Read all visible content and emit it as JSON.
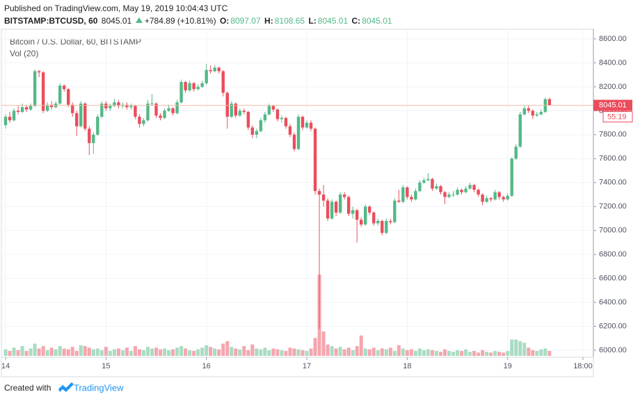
{
  "header": {
    "published": "Published on TradingView.com, May 19, 2019 10:04:43 UTC",
    "symbol": "BITSTAMP:BTCUSD, 60",
    "last": "8045.01",
    "change": "+784.89 (+10.81%)",
    "o": {
      "label": "O:",
      "value": "8097.07"
    },
    "h": {
      "label": "H:",
      "value": "8108.65"
    },
    "l": {
      "label": "L:",
      "value": "8045.01"
    },
    "c": {
      "label": "C:",
      "value": "8045.01"
    }
  },
  "chart_data": {
    "type": "candlestick",
    "legend": "Bitcoin / U.S. Dollar, 60, BITSTAMP",
    "volume_legend": "Vol (20)",
    "up_color": "#53b987",
    "down_color": "#eb4d5c",
    "volume_up_color": "#a9dcc3",
    "volume_down_color": "#f5a6ae",
    "ylim": [
      5942,
      8681
    ],
    "yticks": [
      {
        "value": 6000,
        "label": "6000.00"
      },
      {
        "value": 6200,
        "label": "6200.00"
      },
      {
        "value": 6400,
        "label": "6400.00"
      },
      {
        "value": 6600,
        "label": "6600.00"
      },
      {
        "value": 6800,
        "label": "6800.00"
      },
      {
        "value": 7000,
        "label": "7000.00"
      },
      {
        "value": 7200,
        "label": "7200.00"
      },
      {
        "value": 7400,
        "label": "7400.00"
      },
      {
        "value": 7600,
        "label": "7600.00"
      },
      {
        "value": 7800,
        "label": "7800.00"
      },
      {
        "value": 8000,
        "label": "8000.00"
      },
      {
        "value": 8200,
        "label": "8200.00"
      },
      {
        "value": 8400,
        "label": "8400.00"
      },
      {
        "value": 8600,
        "label": "8600.00"
      }
    ],
    "xlim": [
      -1,
      140.5
    ],
    "xticks": [
      {
        "value": 0,
        "label": "14"
      },
      {
        "value": 24,
        "label": "15"
      },
      {
        "value": 48,
        "label": "16"
      },
      {
        "value": 72,
        "label": "17"
      },
      {
        "value": 96,
        "label": "18"
      },
      {
        "value": 120,
        "label": "19"
      },
      {
        "value": 138,
        "label": "18:00"
      }
    ],
    "grid": true,
    "last_price": {
      "value": 8045.01,
      "label": "8045.01"
    },
    "countdown": "55:19",
    "ohlc": [
      [
        7880,
        7970,
        7850,
        7950
      ],
      [
        7950,
        7990,
        7900,
        7920
      ],
      [
        7920,
        8020,
        7910,
        8000
      ],
      [
        8000,
        8040,
        7970,
        7990
      ],
      [
        7990,
        8060,
        7980,
        8030
      ],
      [
        8030,
        8050,
        7990,
        8010
      ],
      [
        8010,
        8060,
        8000,
        8040
      ],
      [
        8040,
        8345,
        8030,
        8330
      ],
      [
        8330,
        8340,
        8280,
        8320
      ],
      [
        8320,
        8330,
        7980,
        8000
      ],
      [
        8000,
        8070,
        7990,
        8050
      ],
      [
        8050,
        8080,
        8010,
        8030
      ],
      [
        8030,
        8080,
        8020,
        8060
      ],
      [
        8060,
        8230,
        8050,
        8210
      ],
      [
        8210,
        8220,
        8160,
        8180
      ],
      [
        8180,
        8190,
        8030,
        8050
      ],
      [
        8050,
        8070,
        7950,
        7980
      ],
      [
        7980,
        8000,
        7790,
        7870
      ],
      [
        7870,
        8080,
        7860,
        8060
      ],
      [
        8060,
        8070,
        7830,
        7850
      ],
      [
        7850,
        7870,
        7630,
        7730
      ],
      [
        7730,
        7820,
        7640,
        7800
      ],
      [
        7800,
        7970,
        7790,
        7950
      ],
      [
        7950,
        8080,
        7940,
        8060
      ],
      [
        8060,
        8080,
        8000,
        8020
      ],
      [
        8020,
        8060,
        8000,
        8040
      ],
      [
        8040,
        8100,
        8030,
        8070
      ],
      [
        8070,
        8090,
        8020,
        8040
      ],
      [
        8040,
        8070,
        8020,
        8050
      ],
      [
        8050,
        8070,
        8010,
        8030
      ],
      [
        8030,
        8060,
        8010,
        8040
      ],
      [
        8040,
        8050,
        7930,
        7950
      ],
      [
        7950,
        7970,
        7860,
        7890
      ],
      [
        7890,
        7940,
        7870,
        7920
      ],
      [
        7920,
        8090,
        7910,
        8060
      ],
      [
        8060,
        8140,
        8040,
        8060
      ],
      [
        8060,
        8070,
        7940,
        7960
      ],
      [
        7960,
        7980,
        7920,
        7940
      ],
      [
        7940,
        8020,
        7930,
        8000
      ],
      [
        8000,
        8050,
        7990,
        8020
      ],
      [
        8020,
        8030,
        7960,
        7980
      ],
      [
        7980,
        8090,
        7970,
        8070
      ],
      [
        8070,
        8260,
        8060,
        8240
      ],
      [
        8240,
        8250,
        8150,
        8170
      ],
      [
        8170,
        8250,
        8160,
        8230
      ],
      [
        8230,
        8240,
        8160,
        8180
      ],
      [
        8180,
        8220,
        8170,
        8200
      ],
      [
        8200,
        8250,
        8190,
        8230
      ],
      [
        8230,
        8390,
        8220,
        8340
      ],
      [
        8340,
        8380,
        8310,
        8330
      ],
      [
        8330,
        8380,
        8320,
        8360
      ],
      [
        8360,
        8370,
        8310,
        8330
      ],
      [
        8330,
        8340,
        8120,
        8150
      ],
      [
        8150,
        8160,
        7850,
        7950
      ],
      [
        7950,
        8080,
        7940,
        8060
      ],
      [
        8060,
        8070,
        7940,
        7960
      ],
      [
        7960,
        8020,
        7950,
        8000
      ],
      [
        8000,
        8020,
        7970,
        7990
      ],
      [
        7990,
        8000,
        7840,
        7860
      ],
      [
        7860,
        7880,
        7770,
        7800
      ],
      [
        7800,
        7850,
        7770,
        7830
      ],
      [
        7830,
        7940,
        7820,
        7920
      ],
      [
        7920,
        7990,
        7900,
        7970
      ],
      [
        7970,
        8060,
        7960,
        8040
      ],
      [
        8040,
        8050,
        7990,
        8010
      ],
      [
        8010,
        8020,
        7910,
        7930
      ],
      [
        7930,
        7960,
        7900,
        7940
      ],
      [
        7940,
        7950,
        7850,
        7870
      ],
      [
        7870,
        7890,
        7780,
        7800
      ],
      [
        7800,
        7820,
        7660,
        7680
      ],
      [
        7680,
        7970,
        7670,
        7950
      ],
      [
        7950,
        7960,
        7840,
        7860
      ],
      [
        7860,
        7920,
        7850,
        7900
      ],
      [
        7900,
        7920,
        7830,
        7850
      ],
      [
        7850,
        7860,
        7300,
        7330
      ],
      [
        7330,
        7350,
        6180,
        7300
      ],
      [
        7300,
        7380,
        7200,
        7250
      ],
      [
        7250,
        7270,
        7080,
        7100
      ],
      [
        7100,
        7260,
        7090,
        7240
      ],
      [
        7240,
        7250,
        7120,
        7150
      ],
      [
        7150,
        7320,
        7140,
        7300
      ],
      [
        7300,
        7320,
        7260,
        7280
      ],
      [
        7280,
        7290,
        7120,
        7140
      ],
      [
        7140,
        7200,
        7100,
        7170
      ],
      [
        7170,
        7180,
        6900,
        7090
      ],
      [
        7090,
        7110,
        7030,
        7050
      ],
      [
        7050,
        7220,
        7040,
        7200
      ],
      [
        7200,
        7210,
        7130,
        7150
      ],
      [
        7150,
        7160,
        7040,
        7060
      ],
      [
        7060,
        7100,
        7040,
        7080
      ],
      [
        7080,
        7090,
        6960,
        6980
      ],
      [
        6980,
        7100,
        6970,
        7080
      ],
      [
        7080,
        7100,
        7050,
        7070
      ],
      [
        7070,
        7270,
        7060,
        7250
      ],
      [
        7250,
        7340,
        7230,
        7240
      ],
      [
        7240,
        7380,
        7230,
        7360
      ],
      [
        7360,
        7370,
        7260,
        7280
      ],
      [
        7280,
        7300,
        7240,
        7260
      ],
      [
        7260,
        7350,
        7250,
        7330
      ],
      [
        7330,
        7420,
        7320,
        7400
      ],
      [
        7400,
        7440,
        7390,
        7420
      ],
      [
        7420,
        7480,
        7410,
        7430
      ],
      [
        7430,
        7440,
        7330,
        7350
      ],
      [
        7350,
        7390,
        7340,
        7370
      ],
      [
        7370,
        7380,
        7300,
        7320
      ],
      [
        7320,
        7330,
        7220,
        7280
      ],
      [
        7280,
        7320,
        7270,
        7300
      ],
      [
        7300,
        7330,
        7280,
        7300
      ],
      [
        7300,
        7360,
        7290,
        7340
      ],
      [
        7340,
        7350,
        7300,
        7320
      ],
      [
        7320,
        7370,
        7310,
        7350
      ],
      [
        7350,
        7400,
        7340,
        7380
      ],
      [
        7380,
        7390,
        7320,
        7340
      ],
      [
        7340,
        7350,
        7280,
        7300
      ],
      [
        7300,
        7310,
        7210,
        7240
      ],
      [
        7240,
        7290,
        7230,
        7270
      ],
      [
        7270,
        7280,
        7240,
        7260
      ],
      [
        7260,
        7340,
        7250,
        7320
      ],
      [
        7320,
        7330,
        7260,
        7280
      ],
      [
        7280,
        7290,
        7240,
        7260
      ],
      [
        7260,
        7310,
        7250,
        7290
      ],
      [
        7290,
        7610,
        7280,
        7600
      ],
      [
        7600,
        7720,
        7590,
        7700
      ],
      [
        7700,
        7990,
        7690,
        7970
      ],
      [
        7970,
        8040,
        7960,
        8020
      ],
      [
        8020,
        8040,
        7980,
        8000
      ],
      [
        8000,
        8010,
        7930,
        7960
      ],
      [
        7960,
        7990,
        7950,
        7970
      ],
      [
        7970,
        8010,
        7960,
        7990
      ],
      [
        7990,
        8110,
        7980,
        8097.07
      ],
      [
        8097.07,
        8108.65,
        8045.01,
        8045.01
      ]
    ],
    "volume_ylim": [
      0,
      100
    ],
    "volume": [
      8,
      6,
      10,
      7,
      12,
      6,
      9,
      15,
      9,
      12,
      7,
      10,
      8,
      12,
      9,
      8,
      11,
      6,
      13,
      12,
      10,
      8,
      9,
      7,
      11,
      6,
      8,
      9,
      7,
      10,
      6,
      12,
      8,
      7,
      11,
      9,
      10,
      8,
      9,
      7,
      8,
      10,
      12,
      9,
      7,
      6,
      8,
      10,
      13,
      11,
      9,
      8,
      15,
      18,
      11,
      9,
      8,
      12,
      7,
      14,
      9,
      8,
      10,
      7,
      9,
      8,
      7,
      6,
      10,
      9,
      8,
      7,
      6,
      9,
      22,
      100,
      30,
      14,
      12,
      9,
      11,
      8,
      10,
      7,
      12,
      25,
      9,
      8,
      10,
      7,
      9,
      8,
      10,
      6,
      13,
      9,
      7,
      8,
      6,
      9,
      7,
      8,
      7,
      6,
      5,
      8,
      6,
      5,
      7,
      6,
      8,
      5,
      6,
      4,
      7,
      5,
      4,
      6,
      5,
      4,
      6,
      20,
      20,
      18,
      16,
      10,
      7,
      6,
      8,
      9,
      6
    ]
  },
  "footer": {
    "created": "Created with",
    "brand": "TradingView"
  }
}
